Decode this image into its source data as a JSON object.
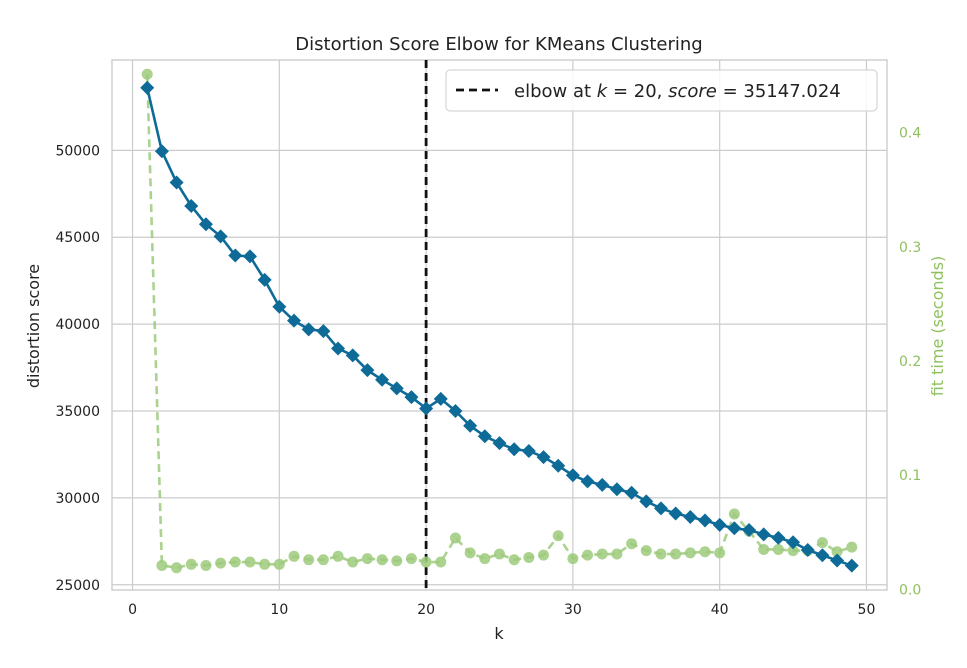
{
  "chart_data": {
    "type": "line",
    "title": "Distortion Score Elbow for KMeans Clustering",
    "xlabel": "k",
    "ylabel": "distortion score",
    "y2label": "fit time (seconds)",
    "xlim": [
      -1.4,
      51.4
    ],
    "ylim": [
      24700,
      55200
    ],
    "y2lim": [
      -0.0005,
      0.4635
    ],
    "x_ticks": [
      0,
      10,
      20,
      30,
      40,
      50
    ],
    "y_ticks": [
      25000,
      30000,
      35000,
      40000,
      45000,
      50000
    ],
    "y2_ticks": [
      0.0,
      0.1,
      0.2,
      0.3,
      0.4
    ],
    "grid": true,
    "legend": {
      "placement": "top-right",
      "prefix": "elbow at ",
      "k_symbol": "k",
      "k_value": "20",
      "score_symbol": "score",
      "score_value": "35147.024"
    },
    "elbow": {
      "k": 20,
      "score": 35147.024
    },
    "colors": {
      "distortion": "#0e6b98",
      "fit_time": "#9dca7c",
      "fit_time_text": "#8fc15f",
      "elbow_line": "#111111"
    },
    "x": [
      1,
      2,
      3,
      4,
      5,
      6,
      7,
      8,
      9,
      10,
      11,
      12,
      13,
      14,
      15,
      16,
      17,
      18,
      19,
      20,
      21,
      22,
      23,
      24,
      25,
      26,
      27,
      28,
      29,
      30,
      31,
      32,
      33,
      34,
      35,
      36,
      37,
      38,
      39,
      40,
      41,
      42,
      43,
      44,
      45,
      46,
      47,
      48,
      49
    ],
    "series": [
      {
        "name": "distortion score",
        "values": [
          53600,
          49950,
          48150,
          46800,
          45750,
          45050,
          43950,
          43900,
          42550,
          41000,
          40200,
          39700,
          39600,
          38600,
          38200,
          37350,
          36800,
          36300,
          35800,
          35147,
          35700,
          35000,
          34150,
          33550,
          33150,
          32800,
          32700,
          32350,
          31850,
          31300,
          30950,
          30750,
          30500,
          30300,
          29800,
          29400,
          29100,
          28900,
          28700,
          28450,
          28250,
          28150,
          27900,
          27700,
          27450,
          27000,
          26700,
          26400,
          26100
        ]
      },
      {
        "name": "fit time (seconds)",
        "values": [
          0.451,
          0.021,
          0.019,
          0.022,
          0.021,
          0.023,
          0.024,
          0.024,
          0.022,
          0.022,
          0.029,
          0.026,
          0.026,
          0.029,
          0.024,
          0.027,
          0.026,
          0.025,
          0.027,
          0.024,
          0.024,
          0.045,
          0.032,
          0.027,
          0.031,
          0.026,
          0.028,
          0.03,
          0.047,
          0.027,
          0.03,
          0.031,
          0.031,
          0.04,
          0.034,
          0.031,
          0.031,
          0.032,
          0.033,
          0.032,
          0.066,
          0.051,
          0.035,
          0.035,
          0.034,
          0.034,
          0.041,
          0.033,
          0.037
        ]
      }
    ]
  }
}
